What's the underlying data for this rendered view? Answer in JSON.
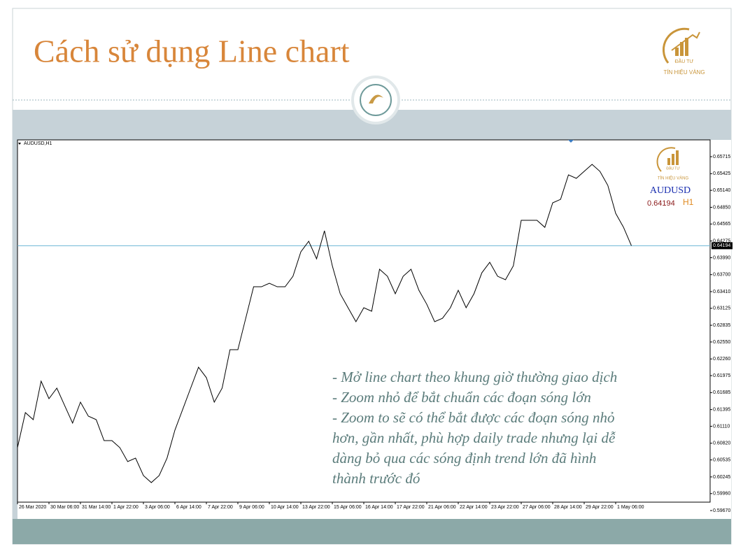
{
  "slide": {
    "title": "Cách sử dụng Line chart",
    "notes": [
      "- Mở line chart theo khung giờ thường giao dịch",
      "- Zoom nhỏ để bắt chuẩn các đoạn sóng lớn",
      "- Zoom to sẽ có thể bắt được các đoạn sóng nhỏ",
      "hơn, gần nhất, phù hợp daily trade nhưng lại dễ",
      "dàng bỏ qua các sóng định trend lớn đã hình",
      "thành trước đó"
    ]
  },
  "logo": {
    "top": "ĐẦU TƯ",
    "bottom": "TÍN HIỆU VÀNG"
  },
  "chart_data": {
    "type": "line",
    "title": "AUDUSD,H1",
    "symbol": "AUDUSD",
    "timeframe": "H1",
    "current_price": 0.64194,
    "color": "#000000",
    "price_line_color": "#6cb4d4",
    "grid": false,
    "categories": [
      "26 Mar 2020",
      null,
      null,
      null,
      "30 Mar 06:00",
      null,
      null,
      null,
      "31 Mar 14:00",
      null,
      null,
      null,
      "1 Apr 22:00",
      null,
      null,
      null,
      "3 Apr 06:00",
      null,
      null,
      null,
      "6 Apr 14:00",
      null,
      null,
      null,
      "7 Apr 22:00",
      null,
      null,
      null,
      "9 Apr 06:00",
      null,
      null,
      null,
      "10 Apr 14:00",
      null,
      null,
      null,
      "13 Apr 22:00",
      null,
      null,
      null,
      "15 Apr 06:00",
      null,
      null,
      null,
      "16 Apr 14:00",
      null,
      null,
      null,
      "17 Apr 22:00",
      null,
      null,
      null,
      "21 Apr 06:00",
      null,
      null,
      null,
      "22 Apr 14:00",
      null,
      null,
      null,
      "23 Apr 22:00",
      null,
      null,
      null,
      "27 Apr 06:00",
      null,
      null,
      null,
      "28 Apr 14:00",
      null,
      null,
      null,
      "29 Apr 22:00",
      null,
      null,
      null,
      "1 May 06:00",
      null,
      null
    ],
    "values": [
      0.60745,
      0.61343,
      0.61223,
      0.6188,
      0.61582,
      0.61761,
      0.61462,
      0.61164,
      0.61522,
      0.61283,
      0.61223,
      0.60865,
      0.60865,
      0.60745,
      0.60507,
      0.60566,
      0.60268,
      0.60148,
      0.60268,
      0.60566,
      0.61044,
      0.61402,
      0.61761,
      0.62119,
      0.6194,
      0.61522,
      0.61761,
      0.62418,
      0.62418,
      0.62955,
      0.63493,
      0.63493,
      0.63553,
      0.63493,
      0.63493,
      0.63672,
      0.6409,
      0.6427,
      0.63971,
      0.64449,
      0.63851,
      0.63374,
      0.63135,
      0.62896,
      0.63135,
      0.63075,
      0.63792,
      0.63672,
      0.63374,
      0.63672,
      0.63792,
      0.63433,
      0.63194,
      0.62896,
      0.62955,
      0.63135,
      0.63433,
      0.63135,
      0.63374,
      0.63732,
      0.63911,
      0.63672,
      0.63613,
      0.63851,
      0.64628,
      0.64628,
      0.64628,
      0.64508,
      0.64927,
      0.64986,
      0.65404,
      0.65345,
      0.65464,
      0.65584,
      0.65464,
      0.65225,
      0.64747,
      0.64508,
      0.64194
    ],
    "ylim": [
      0.59551,
      0.66002
    ],
    "yticks": [
      0.65715,
      0.65425,
      {
        "value": 0.6514,
        "label": "0.65140"
      },
      {
        "value": 0.6485,
        "label": "0.64850"
      },
      0.64565,
      0.64275,
      {
        "value": 0.6399,
        "label": "0.63990"
      },
      {
        "value": 0.637,
        "label": "0.63700"
      },
      {
        "value": 0.6341,
        "label": "0.63410"
      },
      0.63125,
      0.62835,
      {
        "value": 0.6255,
        "label": "0.62550"
      },
      {
        "value": 0.6226,
        "label": "0.62260"
      },
      0.61975,
      0.61685,
      0.61395,
      {
        "value": 0.6111,
        "label": "0.61110"
      },
      {
        "value": 0.6082,
        "label": "0.60820"
      },
      0.60535,
      0.60245,
      {
        "value": 0.5996,
        "label": "0.59960"
      },
      {
        "value": 0.5967,
        "label": "0.59670"
      }
    ]
  }
}
